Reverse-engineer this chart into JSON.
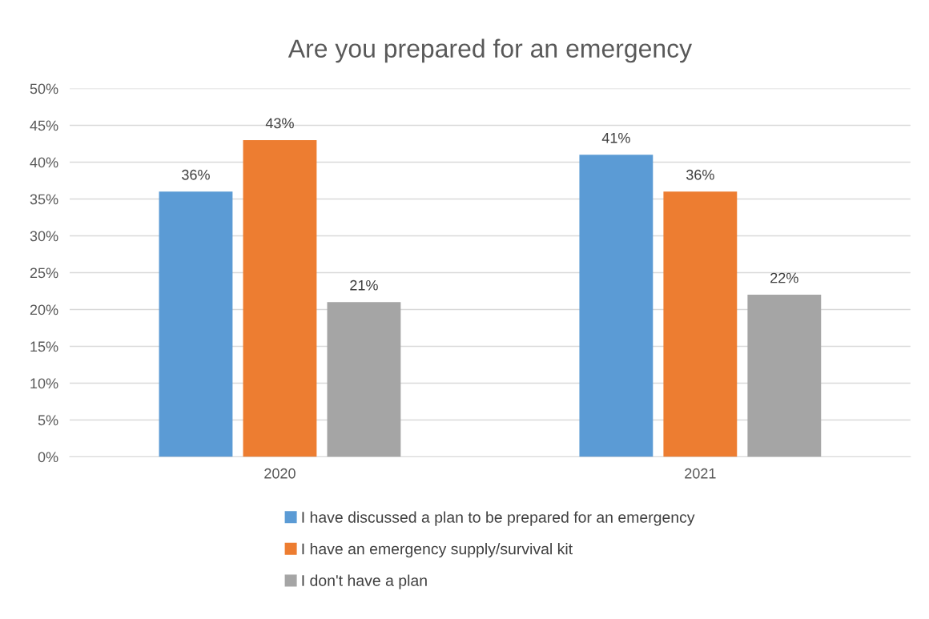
{
  "chart_data": {
    "type": "bar",
    "title": "Are you prepared for an emergency",
    "categories": [
      "2020",
      "2021"
    ],
    "series": [
      {
        "name": "I have discussed a plan to be prepared for an emergency",
        "color": "#5b9bd5",
        "values": [
          36,
          41
        ],
        "value_labels": [
          "36%",
          "41%"
        ]
      },
      {
        "name": "I have an emergency supply/survival kit",
        "color": "#ed7d31",
        "values": [
          43,
          36
        ],
        "value_labels": [
          "43%",
          "36%"
        ]
      },
      {
        "name": "I don't have a plan",
        "color": "#a5a5a5",
        "values": [
          21,
          22
        ],
        "value_labels": [
          "21%",
          "22%"
        ]
      }
    ],
    "ylim": [
      0,
      50
    ],
    "yticks": [
      {
        "value": 0,
        "label": "0%"
      },
      {
        "value": 5,
        "label": "5%"
      },
      {
        "value": 10,
        "label": "10%"
      },
      {
        "value": 15,
        "label": "15%"
      },
      {
        "value": 20,
        "label": "20%"
      },
      {
        "value": 25,
        "label": "25%"
      },
      {
        "value": 30,
        "label": "30%"
      },
      {
        "value": 35,
        "label": "35%"
      },
      {
        "value": 40,
        "label": "40%"
      },
      {
        "value": 45,
        "label": "45%"
      },
      {
        "value": 50,
        "label": "50%"
      }
    ],
    "grid": "y",
    "legend": "bottom"
  }
}
